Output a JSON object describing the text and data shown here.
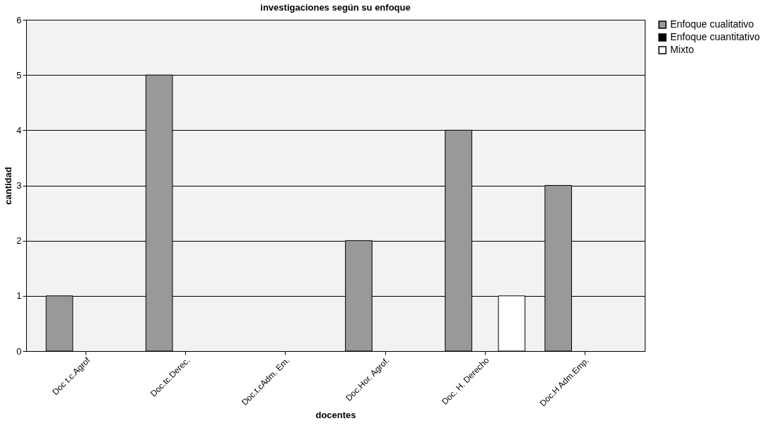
{
  "chart_data": {
    "type": "bar",
    "title": "investigaciones según su enfoque",
    "xlabel": "docentes",
    "ylabel": "cantidad",
    "categories": [
      "Doc t.c.Agrof",
      "Doc.tc.Derec.",
      "Doc.t.cAdm. Em.",
      "Doc.Hor. Agrof.",
      "Doc. H. Derecho",
      "Doc.H Adm.Emp."
    ],
    "series": [
      {
        "name": "Enfoque cualitativo",
        "color": "#999999",
        "values": [
          1,
          5,
          null,
          2,
          4,
          3
        ]
      },
      {
        "name": "Enfoque cuantitativo",
        "color": "#000000",
        "values": [
          null,
          null,
          null,
          null,
          null,
          null
        ]
      },
      {
        "name": "Mixto",
        "color": "#ffffff",
        "values": [
          null,
          null,
          null,
          null,
          1,
          null
        ]
      }
    ],
    "ylim": [
      0,
      6
    ],
    "yticks": [
      0,
      1,
      2,
      3,
      4,
      5,
      6
    ],
    "grid": "y",
    "legend": "right"
  }
}
